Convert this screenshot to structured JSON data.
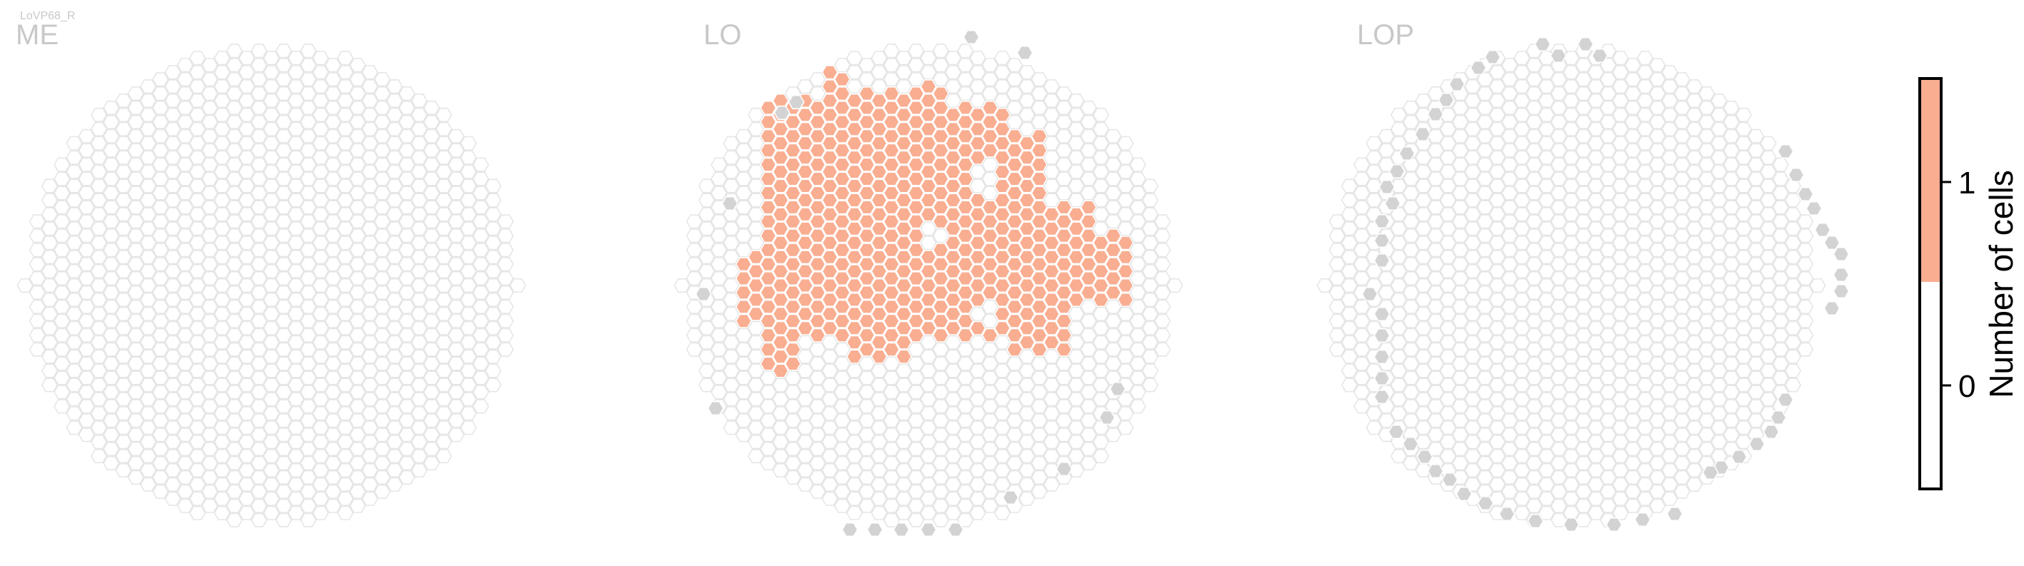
{
  "neuron_type": "LoVP68_R",
  "panels": [
    {
      "name": "ME"
    },
    {
      "name": "LO"
    },
    {
      "name": "LOP"
    }
  ],
  "colors": {
    "hex_edge": "#e6e6e6",
    "hex_empty_fill": "#ffffff",
    "hex_edge_marker": "#d3d3d3",
    "hex_one": "#f9ae91",
    "colorbar_zero": "#ffffff",
    "colorbar_one": "#f9ae91",
    "text_title": "#c8c8c8"
  },
  "chart_data": {
    "type": "heatmap",
    "colorbar": {
      "label": "Number of cells",
      "ticks": [
        "0",
        "1"
      ],
      "range": [
        -0.5,
        1.5
      ],
      "levels": [
        {
          "value": 0,
          "color": "#ffffff"
        },
        {
          "value": 1,
          "color": "#f9ae91"
        }
      ]
    }
  }
}
